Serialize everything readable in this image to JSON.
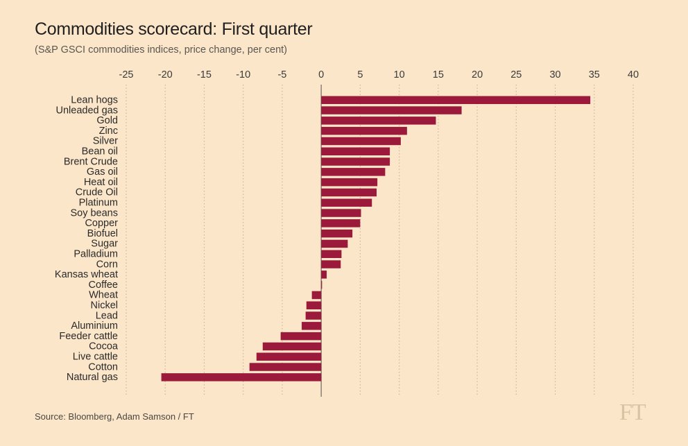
{
  "header": {
    "title": "Commodities scorecard: First quarter",
    "subtitle": "(S&P GSCI commodities indices, price change, per cent)"
  },
  "footer": {
    "source": "Source: Bloomberg, Adam Samson / FT",
    "logo_text": "FT"
  },
  "colors": {
    "background": "#fbe6c9",
    "bar": "#9b1a3c",
    "grid": "#c6b79f",
    "zero_line": "#7a7266"
  },
  "chart_data": {
    "type": "bar",
    "orientation": "horizontal",
    "title": "Commodities scorecard: First quarter",
    "subtitle": "(S&P GSCI commodities indices, price change, per cent)",
    "xlabel": "",
    "ylabel": "",
    "xlim": [
      -25,
      40
    ],
    "xticks": [
      -25,
      -20,
      -15,
      -10,
      -5,
      0,
      5,
      10,
      15,
      20,
      25,
      30,
      35,
      40
    ],
    "grid": true,
    "categories": [
      "Lean hogs",
      "Unleaded gas",
      "Gold",
      "Zinc",
      "Silver",
      "Bean oil",
      "Brent Crude",
      "Gas oil",
      "Heat oil",
      "Crude Oil",
      "Platinum",
      "Soy beans",
      "Copper",
      "Biofuel",
      "Sugar",
      "Palladium",
      "Corn",
      "Kansas wheat",
      "Coffee",
      "Wheat",
      "Nickel",
      "Lead",
      "Aluminium",
      "Feeder cattle",
      "Cocoa",
      "Live cattle",
      "Cotton",
      "Natural gas"
    ],
    "values": [
      34.5,
      18.0,
      14.7,
      11.0,
      10.2,
      8.8,
      8.8,
      8.2,
      7.2,
      7.1,
      6.5,
      5.1,
      5.0,
      4.0,
      3.4,
      2.6,
      2.5,
      0.7,
      0.1,
      -1.2,
      -1.9,
      -2.0,
      -2.5,
      -5.2,
      -7.5,
      -8.3,
      -9.2,
      -20.5
    ]
  }
}
